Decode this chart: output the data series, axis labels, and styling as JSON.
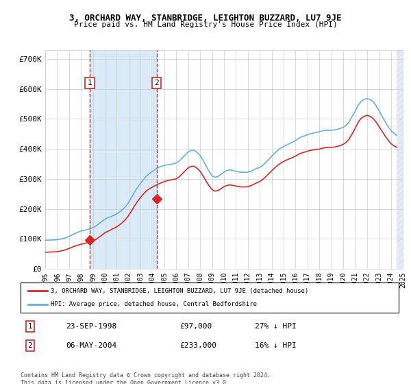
{
  "title": "3, ORCHARD WAY, STANBRIDGE, LEIGHTON BUZZARD, LU7 9JE",
  "subtitle": "Price paid vs. HM Land Registry's House Price Index (HPI)",
  "legend_line1": "3, ORCHARD WAY, STANBRIDGE, LEIGHTON BUZZARD, LU7 9JE (detached house)",
  "legend_line2": "HPI: Average price, detached house, Central Bedfordshire",
  "footer": "Contains HM Land Registry data © Crown copyright and database right 2024.\nThis data is licensed under the Open Government Licence v3.0.",
  "table_rows": [
    {
      "num": "1",
      "date": "23-SEP-1998",
      "price": "£97,000",
      "hpi": "27% ↓ HPI"
    },
    {
      "num": "2",
      "date": "06-MAY-2004",
      "price": "£233,000",
      "hpi": "16% ↓ HPI"
    }
  ],
  "sale1_year": 1998.73,
  "sale1_price": 97000,
  "sale2_year": 2004.35,
  "sale2_price": 233000,
  "ylim": [
    0,
    730000
  ],
  "yticks": [
    0,
    100000,
    200000,
    300000,
    400000,
    500000,
    600000,
    700000
  ],
  "ytick_labels": [
    "£0",
    "£100K",
    "£200K",
    "£300K",
    "£400K",
    "£500K",
    "£600K",
    "£700K"
  ],
  "hpi_color": "#6baed6",
  "price_color": "#d62728",
  "shade_color": "#dbeaf7",
  "hatch_color": "#c8d8e8",
  "vline_color": "#d62728",
  "background_color": "#ffffff",
  "grid_color": "#cccccc",
  "hpi_data": {
    "years": [
      1995.0,
      1995.25,
      1995.5,
      1995.75,
      1996.0,
      1996.25,
      1996.5,
      1996.75,
      1997.0,
      1997.25,
      1997.5,
      1997.75,
      1998.0,
      1998.25,
      1998.5,
      1998.75,
      1999.0,
      1999.25,
      1999.5,
      1999.75,
      2000.0,
      2000.25,
      2000.5,
      2000.75,
      2001.0,
      2001.25,
      2001.5,
      2001.75,
      2002.0,
      2002.25,
      2002.5,
      2002.75,
      2003.0,
      2003.25,
      2003.5,
      2003.75,
      2004.0,
      2004.25,
      2004.5,
      2004.75,
      2005.0,
      2005.25,
      2005.5,
      2005.75,
      2006.0,
      2006.25,
      2006.5,
      2006.75,
      2007.0,
      2007.25,
      2007.5,
      2007.75,
      2008.0,
      2008.25,
      2008.5,
      2008.75,
      2009.0,
      2009.25,
      2009.5,
      2009.75,
      2010.0,
      2010.25,
      2010.5,
      2010.75,
      2011.0,
      2011.25,
      2011.5,
      2011.75,
      2012.0,
      2012.25,
      2012.5,
      2012.75,
      2013.0,
      2013.25,
      2013.5,
      2013.75,
      2014.0,
      2014.25,
      2014.5,
      2014.75,
      2015.0,
      2015.25,
      2015.5,
      2015.75,
      2016.0,
      2016.25,
      2016.5,
      2016.75,
      2017.0,
      2017.25,
      2017.5,
      2017.75,
      2018.0,
      2018.25,
      2018.5,
      2018.75,
      2019.0,
      2019.25,
      2019.5,
      2019.75,
      2020.0,
      2020.25,
      2020.5,
      2020.75,
      2021.0,
      2021.25,
      2021.5,
      2021.75,
      2022.0,
      2022.25,
      2022.5,
      2022.75,
      2023.0,
      2023.25,
      2023.5,
      2023.75,
      2024.0,
      2024.25,
      2024.5
    ],
    "values": [
      95000,
      95500,
      96000,
      96500,
      97000,
      99000,
      101000,
      104000,
      108000,
      113000,
      118000,
      122000,
      126000,
      128000,
      131000,
      133000,
      137000,
      143000,
      150000,
      158000,
      165000,
      170000,
      174000,
      178000,
      183000,
      190000,
      198000,
      208000,
      222000,
      238000,
      256000,
      272000,
      285000,
      298000,
      310000,
      318000,
      325000,
      332000,
      338000,
      342000,
      345000,
      347000,
      348000,
      350000,
      353000,
      360000,
      370000,
      380000,
      390000,
      395000,
      395000,
      388000,
      378000,
      362000,
      343000,
      325000,
      310000,
      305000,
      308000,
      315000,
      323000,
      328000,
      330000,
      328000,
      325000,
      323000,
      322000,
      322000,
      322000,
      325000,
      330000,
      335000,
      338000,
      345000,
      355000,
      365000,
      375000,
      385000,
      395000,
      402000,
      408000,
      413000,
      418000,
      422000,
      428000,
      435000,
      440000,
      443000,
      447000,
      450000,
      453000,
      455000,
      457000,
      460000,
      462000,
      462000,
      462000,
      463000,
      465000,
      468000,
      472000,
      478000,
      490000,
      508000,
      525000,
      545000,
      558000,
      565000,
      568000,
      565000,
      558000,
      545000,
      528000,
      510000,
      492000,
      475000,
      462000,
      452000,
      445000
    ]
  },
  "price_data": {
    "years": [
      1995.0,
      1995.25,
      1995.5,
      1995.75,
      1996.0,
      1996.25,
      1996.5,
      1996.75,
      1997.0,
      1997.25,
      1997.5,
      1997.75,
      1998.0,
      1998.25,
      1998.5,
      1998.75,
      1999.0,
      1999.25,
      1999.5,
      1999.75,
      2000.0,
      2000.25,
      2000.5,
      2000.75,
      2001.0,
      2001.25,
      2001.5,
      2001.75,
      2002.0,
      2002.25,
      2002.5,
      2002.75,
      2003.0,
      2003.25,
      2003.5,
      2003.75,
      2004.0,
      2004.25,
      2004.5,
      2004.75,
      2005.0,
      2005.25,
      2005.5,
      2005.75,
      2006.0,
      2006.25,
      2006.5,
      2006.75,
      2007.0,
      2007.25,
      2007.5,
      2007.75,
      2008.0,
      2008.25,
      2008.5,
      2008.75,
      2009.0,
      2009.25,
      2009.5,
      2009.75,
      2010.0,
      2010.25,
      2010.5,
      2010.75,
      2011.0,
      2011.25,
      2011.5,
      2011.75,
      2012.0,
      2012.25,
      2012.5,
      2012.75,
      2013.0,
      2013.25,
      2013.5,
      2013.75,
      2014.0,
      2014.25,
      2014.5,
      2014.75,
      2015.0,
      2015.25,
      2015.5,
      2015.75,
      2016.0,
      2016.25,
      2016.5,
      2016.75,
      2017.0,
      2017.25,
      2017.5,
      2017.75,
      2018.0,
      2018.25,
      2018.5,
      2018.75,
      2019.0,
      2019.25,
      2019.5,
      2019.75,
      2020.0,
      2020.25,
      2020.5,
      2020.75,
      2021.0,
      2021.25,
      2021.5,
      2021.75,
      2022.0,
      2022.25,
      2022.5,
      2022.75,
      2023.0,
      2023.25,
      2023.5,
      2023.75,
      2024.0,
      2024.25,
      2024.5
    ],
    "values": [
      55000,
      55500,
      56000,
      56500,
      57000,
      59000,
      61000,
      64000,
      68000,
      72000,
      76000,
      79000,
      82000,
      84000,
      87000,
      89000,
      93000,
      98000,
      105000,
      112000,
      120000,
      125000,
      130000,
      135000,
      140000,
      147000,
      155000,
      165000,
      178000,
      193000,
      210000,
      225000,
      238000,
      250000,
      260000,
      267000,
      273000,
      278000,
      283000,
      287000,
      291000,
      294000,
      296000,
      298000,
      300000,
      307000,
      317000,
      327000,
      337000,
      342000,
      342000,
      335000,
      325000,
      310000,
      292000,
      277000,
      264000,
      259000,
      261000,
      267000,
      274000,
      278000,
      280000,
      278000,
      276000,
      274000,
      273000,
      273000,
      274000,
      277000,
      282000,
      287000,
      291000,
      298000,
      307000,
      317000,
      327000,
      336000,
      345000,
      352000,
      358000,
      363000,
      367000,
      371000,
      376000,
      382000,
      386000,
      389000,
      392000,
      395000,
      397000,
      398000,
      399000,
      402000,
      404000,
      405000,
      405000,
      406000,
      408000,
      411000,
      415000,
      422000,
      433000,
      450000,
      468000,
      488000,
      502000,
      508000,
      512000,
      509000,
      502000,
      490000,
      475000,
      460000,
      444000,
      430000,
      418000,
      410000,
      405000
    ]
  },
  "xmin": 1995.0,
  "xmax": 2025.0,
  "xticks": [
    1995,
    1996,
    1997,
    1998,
    1999,
    2000,
    2001,
    2002,
    2003,
    2004,
    2005,
    2006,
    2007,
    2008,
    2009,
    2010,
    2011,
    2012,
    2013,
    2014,
    2015,
    2016,
    2017,
    2018,
    2019,
    2020,
    2021,
    2022,
    2023,
    2024,
    2025
  ]
}
